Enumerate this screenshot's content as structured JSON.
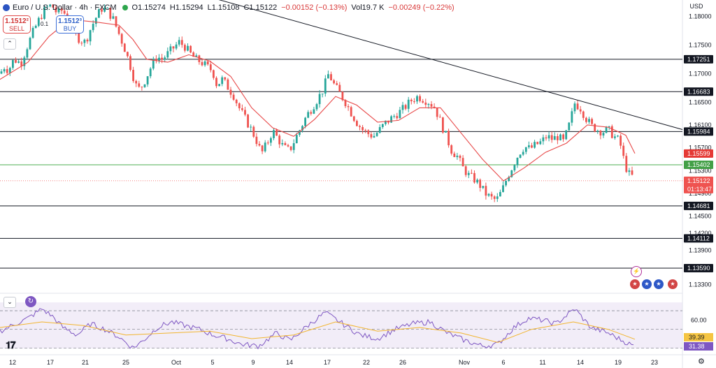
{
  "header": {
    "symbol": "Euro / U.S. Dollar · 4h · FXCM",
    "open": "O1.15274",
    "high": "H1.15294",
    "low": "L1.15108",
    "close": "C1.15122",
    "change": "−0.00152 (−0.13%)",
    "volume": "Vol19.7 K",
    "vol_change": "−0.00249 (−0.22%)"
  },
  "trade": {
    "sell_price": "1.1512²",
    "sell_label": "SELL",
    "buy_price": "1.1512³",
    "buy_label": "BUY",
    "spread": "0.1"
  },
  "currency": "USD",
  "colors": {
    "up": "#26a69a",
    "down": "#ef5350",
    "ma": "#e84a4a",
    "rsi": "#7e57c2",
    "rsi_ma": "#f2b52e",
    "support_green": "#4caf50",
    "trendline": "#131722"
  },
  "chart_data": {
    "type": "candlestick",
    "timeframe": "4h",
    "ylim": [
      1.1315,
      1.1829
    ],
    "y_ticks": [
      "1.18000",
      "1.17500",
      "1.17000",
      "1.16500",
      "1.16100",
      "1.15700",
      "1.15300",
      "1.14900",
      "1.14500",
      "1.14200",
      "1.13900",
      "1.13300"
    ],
    "x_ticks": [
      "12",
      "17",
      "21",
      "25",
      "Oct",
      "5",
      "9",
      "14",
      "17",
      "22",
      "26",
      "Nov",
      "6",
      "11",
      "14",
      "19",
      "23"
    ],
    "horizontal_levels": [
      "1.17251",
      "1.16683",
      "1.15984",
      "1.14681",
      "1.14112",
      "1.13590"
    ],
    "support_level": "1.15402",
    "ma_label": "1.15599",
    "last_price": "1.15122",
    "countdown": "01:13:47",
    "trendline": {
      "start": 1.1834,
      "end": 1.1602
    },
    "close_path": [
      {
        "x": 0,
        "y": 1.17
      },
      {
        "x": 6,
        "y": 1.1712
      },
      {
        "x": 12,
        "y": 1.1706
      },
      {
        "x": 20,
        "y": 1.1725
      },
      {
        "x": 30,
        "y": 1.1718
      },
      {
        "x": 38,
        "y": 1.1745
      },
      {
        "x": 48,
        "y": 1.1775
      },
      {
        "x": 58,
        "y": 1.18
      },
      {
        "x": 66,
        "y": 1.1815
      },
      {
        "x": 74,
        "y": 1.182
      },
      {
        "x": 82,
        "y": 1.1805
      },
      {
        "x": 90,
        "y": 1.1812
      },
      {
        "x": 98,
        "y": 1.179
      },
      {
        "x": 106,
        "y": 1.177
      },
      {
        "x": 114,
        "y": 1.176
      },
      {
        "x": 122,
        "y": 1.1755
      },
      {
        "x": 130,
        "y": 1.178
      },
      {
        "x": 138,
        "y": 1.18
      },
      {
        "x": 146,
        "y": 1.1815
      },
      {
        "x": 154,
        "y": 1.181
      },
      {
        "x": 162,
        "y": 1.1795
      },
      {
        "x": 170,
        "y": 1.177
      },
      {
        "x": 178,
        "y": 1.1745
      },
      {
        "x": 186,
        "y": 1.1715
      },
      {
        "x": 194,
        "y": 1.168
      },
      {
        "x": 200,
        "y": 1.1672
      },
      {
        "x": 208,
        "y": 1.169
      },
      {
        "x": 216,
        "y": 1.1712
      },
      {
        "x": 224,
        "y": 1.173
      },
      {
        "x": 232,
        "y": 1.1725
      },
      {
        "x": 240,
        "y": 1.1735
      },
      {
        "x": 248,
        "y": 1.1745
      },
      {
        "x": 256,
        "y": 1.1755
      },
      {
        "x": 264,
        "y": 1.1748
      },
      {
        "x": 272,
        "y": 1.1735
      },
      {
        "x": 280,
        "y": 1.1725
      },
      {
        "x": 288,
        "y": 1.172
      },
      {
        "x": 296,
        "y": 1.1712
      },
      {
        "x": 304,
        "y": 1.1705
      },
      {
        "x": 310,
        "y": 1.168
      },
      {
        "x": 318,
        "y": 1.169
      },
      {
        "x": 326,
        "y": 1.1676
      },
      {
        "x": 334,
        "y": 1.1662
      },
      {
        "x": 342,
        "y": 1.164
      },
      {
        "x": 350,
        "y": 1.1622
      },
      {
        "x": 358,
        "y": 1.1605
      },
      {
        "x": 366,
        "y": 1.1585
      },
      {
        "x": 374,
        "y": 1.156
      },
      {
        "x": 382,
        "y": 1.1578
      },
      {
        "x": 390,
        "y": 1.16
      },
      {
        "x": 398,
        "y": 1.1585
      },
      {
        "x": 406,
        "y": 1.157
      },
      {
        "x": 414,
        "y": 1.1565
      },
      {
        "x": 422,
        "y": 1.1585
      },
      {
        "x": 430,
        "y": 1.1605
      },
      {
        "x": 438,
        "y": 1.1625
      },
      {
        "x": 446,
        "y": 1.164
      },
      {
        "x": 454,
        "y": 1.1655
      },
      {
        "x": 462,
        "y": 1.1672
      },
      {
        "x": 470,
        "y": 1.17
      },
      {
        "x": 478,
        "y": 1.168
      },
      {
        "x": 486,
        "y": 1.1665
      },
      {
        "x": 494,
        "y": 1.165
      },
      {
        "x": 502,
        "y": 1.1632
      },
      {
        "x": 510,
        "y": 1.1615
      },
      {
        "x": 518,
        "y": 1.1602
      },
      {
        "x": 526,
        "y": 1.1595
      },
      {
        "x": 534,
        "y": 1.159
      },
      {
        "x": 542,
        "y": 1.16
      },
      {
        "x": 550,
        "y": 1.1612
      },
      {
        "x": 558,
        "y": 1.162
      },
      {
        "x": 566,
        "y": 1.1628
      },
      {
        "x": 574,
        "y": 1.1635
      },
      {
        "x": 582,
        "y": 1.1645
      },
      {
        "x": 590,
        "y": 1.1655
      },
      {
        "x": 598,
        "y": 1.166
      },
      {
        "x": 606,
        "y": 1.1655
      },
      {
        "x": 614,
        "y": 1.165
      },
      {
        "x": 622,
        "y": 1.164
      },
      {
        "x": 630,
        "y": 1.1615
      },
      {
        "x": 638,
        "y": 1.159
      },
      {
        "x": 646,
        "y": 1.1565
      },
      {
        "x": 654,
        "y": 1.1555
      },
      {
        "x": 662,
        "y": 1.1535
      },
      {
        "x": 670,
        "y": 1.1522
      },
      {
        "x": 678,
        "y": 1.1515
      },
      {
        "x": 686,
        "y": 1.1505
      },
      {
        "x": 694,
        "y": 1.149
      },
      {
        "x": 702,
        "y": 1.1482
      },
      {
        "x": 710,
        "y": 1.1478
      },
      {
        "x": 718,
        "y": 1.1495
      },
      {
        "x": 726,
        "y": 1.152
      },
      {
        "x": 734,
        "y": 1.154
      },
      {
        "x": 742,
        "y": 1.156
      },
      {
        "x": 750,
        "y": 1.1572
      },
      {
        "x": 758,
        "y": 1.1568
      },
      {
        "x": 766,
        "y": 1.1575
      },
      {
        "x": 774,
        "y": 1.158
      },
      {
        "x": 782,
        "y": 1.159
      },
      {
        "x": 790,
        "y": 1.1585
      },
      {
        "x": 798,
        "y": 1.159
      },
      {
        "x": 806,
        "y": 1.158
      },
      {
        "x": 814,
        "y": 1.161
      },
      {
        "x": 822,
        "y": 1.1648
      },
      {
        "x": 830,
        "y": 1.164
      },
      {
        "x": 838,
        "y": 1.1622
      },
      {
        "x": 846,
        "y": 1.1608
      },
      {
        "x": 854,
        "y": 1.1602
      },
      {
        "x": 862,
        "y": 1.1598
      },
      {
        "x": 870,
        "y": 1.1602
      },
      {
        "x": 878,
        "y": 1.159
      },
      {
        "x": 886,
        "y": 1.1582
      },
      {
        "x": 892,
        "y": 1.155
      },
      {
        "x": 898,
        "y": 1.1525
      },
      {
        "x": 904,
        "y": 1.152
      },
      {
        "x": 908,
        "y": 1.1512
      }
    ],
    "ma_path": [
      {
        "x": 0,
        "y": 1.169
      },
      {
        "x": 40,
        "y": 1.172
      },
      {
        "x": 70,
        "y": 1.1765
      },
      {
        "x": 100,
        "y": 1.1795
      },
      {
        "x": 140,
        "y": 1.179
      },
      {
        "x": 170,
        "y": 1.1785
      },
      {
        "x": 190,
        "y": 1.176
      },
      {
        "x": 210,
        "y": 1.1725
      },
      {
        "x": 240,
        "y": 1.172
      },
      {
        "x": 270,
        "y": 1.1733
      },
      {
        "x": 300,
        "y": 1.1722
      },
      {
        "x": 330,
        "y": 1.1695
      },
      {
        "x": 360,
        "y": 1.164
      },
      {
        "x": 390,
        "y": 1.1605
      },
      {
        "x": 420,
        "y": 1.159
      },
      {
        "x": 450,
        "y": 1.162
      },
      {
        "x": 480,
        "y": 1.166
      },
      {
        "x": 510,
        "y": 1.1645
      },
      {
        "x": 540,
        "y": 1.1615
      },
      {
        "x": 570,
        "y": 1.1618
      },
      {
        "x": 600,
        "y": 1.164
      },
      {
        "x": 630,
        "y": 1.164
      },
      {
        "x": 660,
        "y": 1.1595
      },
      {
        "x": 690,
        "y": 1.155
      },
      {
        "x": 720,
        "y": 1.1512
      },
      {
        "x": 750,
        "y": 1.1535
      },
      {
        "x": 780,
        "y": 1.1562
      },
      {
        "x": 810,
        "y": 1.1578
      },
      {
        "x": 840,
        "y": 1.161
      },
      {
        "x": 870,
        "y": 1.1606
      },
      {
        "x": 895,
        "y": 1.1592
      },
      {
        "x": 908,
        "y": 1.156
      }
    ]
  },
  "rsi": {
    "label_60": "60.00",
    "ma_value": "39.39",
    "value": "31.38",
    "rsi_path": [
      {
        "x": 0,
        "y": 48
      },
      {
        "x": 20,
        "y": 55
      },
      {
        "x": 40,
        "y": 62
      },
      {
        "x": 60,
        "y": 72
      },
      {
        "x": 75,
        "y": 64
      },
      {
        "x": 90,
        "y": 52
      },
      {
        "x": 110,
        "y": 44
      },
      {
        "x": 130,
        "y": 56
      },
      {
        "x": 150,
        "y": 50
      },
      {
        "x": 170,
        "y": 42
      },
      {
        "x": 190,
        "y": 30
      },
      {
        "x": 205,
        "y": 38
      },
      {
        "x": 225,
        "y": 52
      },
      {
        "x": 245,
        "y": 58
      },
      {
        "x": 265,
        "y": 54
      },
      {
        "x": 285,
        "y": 50
      },
      {
        "x": 305,
        "y": 44
      },
      {
        "x": 325,
        "y": 40
      },
      {
        "x": 345,
        "y": 34
      },
      {
        "x": 370,
        "y": 32
      },
      {
        "x": 395,
        "y": 46
      },
      {
        "x": 415,
        "y": 38
      },
      {
        "x": 440,
        "y": 54
      },
      {
        "x": 465,
        "y": 68
      },
      {
        "x": 490,
        "y": 56
      },
      {
        "x": 515,
        "y": 44
      },
      {
        "x": 540,
        "y": 40
      },
      {
        "x": 565,
        "y": 50
      },
      {
        "x": 590,
        "y": 56
      },
      {
        "x": 615,
        "y": 58
      },
      {
        "x": 640,
        "y": 46
      },
      {
        "x": 665,
        "y": 38
      },
      {
        "x": 690,
        "y": 32
      },
      {
        "x": 712,
        "y": 34
      },
      {
        "x": 735,
        "y": 52
      },
      {
        "x": 755,
        "y": 62
      },
      {
        "x": 775,
        "y": 60
      },
      {
        "x": 795,
        "y": 56
      },
      {
        "x": 822,
        "y": 72
      },
      {
        "x": 845,
        "y": 52
      },
      {
        "x": 870,
        "y": 46
      },
      {
        "x": 890,
        "y": 38
      },
      {
        "x": 908,
        "y": 31.4
      }
    ],
    "ma_path": [
      {
        "x": 0,
        "y": 52
      },
      {
        "x": 60,
        "y": 58
      },
      {
        "x": 120,
        "y": 54
      },
      {
        "x": 180,
        "y": 44
      },
      {
        "x": 240,
        "y": 46
      },
      {
        "x": 300,
        "y": 48
      },
      {
        "x": 360,
        "y": 40
      },
      {
        "x": 420,
        "y": 44
      },
      {
        "x": 480,
        "y": 58
      },
      {
        "x": 540,
        "y": 48
      },
      {
        "x": 600,
        "y": 52
      },
      {
        "x": 660,
        "y": 46
      },
      {
        "x": 712,
        "y": 36
      },
      {
        "x": 760,
        "y": 50
      },
      {
        "x": 820,
        "y": 58
      },
      {
        "x": 870,
        "y": 50
      },
      {
        "x": 908,
        "y": 39.4
      }
    ]
  }
}
